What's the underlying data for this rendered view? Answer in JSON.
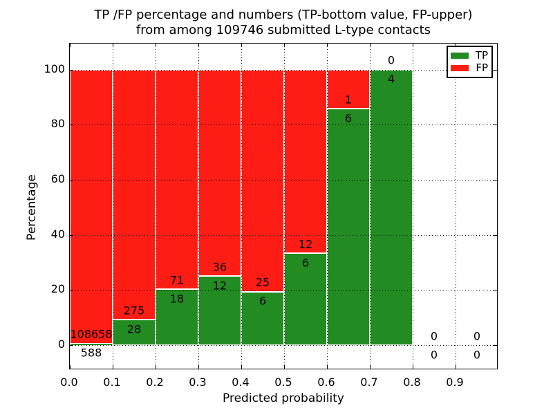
{
  "chart_data": {
    "type": "bar",
    "stacked": true,
    "normalization": "each bin scaled so TP% + FP% = 100 (TP fraction of bin total)",
    "title_lines": [
      "TP /FP percentage and numbers (TP-bottom value, FP-upper)",
      "from among 109746 submitted L-type contacts"
    ],
    "xlabel": "Predicted probability",
    "ylabel": "Percentage",
    "total_submitted_contacts": 109746,
    "bin_width": 0.1,
    "bin_edges": [
      0.0,
      0.1,
      0.2,
      0.3,
      0.4,
      0.5,
      0.6,
      0.7,
      0.8,
      0.9,
      1.0
    ],
    "categories": [
      "0.0-0.1",
      "0.1-0.2",
      "0.2-0.3",
      "0.3-0.4",
      "0.4-0.5",
      "0.5-0.6",
      "0.6-0.7",
      "0.7-0.8",
      "0.8-0.9",
      "0.9-1.0"
    ],
    "series": [
      {
        "name": "TP",
        "color": "#228b22",
        "values": [
          588,
          28,
          18,
          12,
          6,
          6,
          6,
          4,
          0,
          0
        ]
      },
      {
        "name": "FP",
        "color": "#fd1d15",
        "values": [
          108658,
          275,
          71,
          36,
          25,
          12,
          1,
          0,
          0,
          0
        ]
      }
    ],
    "xticks": [
      "0.0",
      "0.1",
      "0.2",
      "0.3",
      "0.4",
      "0.5",
      "0.6",
      "0.7",
      "0.8",
      "0.9"
    ],
    "yticks": [
      "0",
      "20",
      "40",
      "60",
      "80",
      "100"
    ],
    "xlim": [
      0.0,
      1.0
    ],
    "ylim": [
      -9,
      110
    ],
    "grid": "dotted black, both axes, drawn above bars",
    "legend_position": "upper right",
    "bar_edge_color": "#ffffff",
    "text_color": "#000000"
  }
}
